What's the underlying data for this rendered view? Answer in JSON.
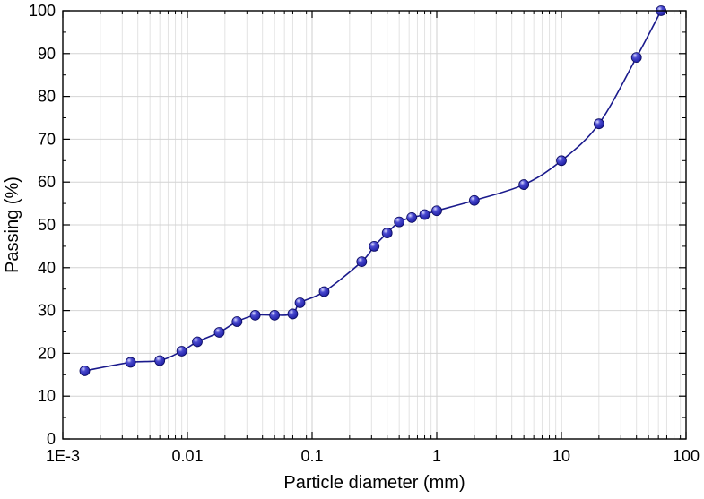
{
  "chart_data": {
    "type": "line",
    "title": "",
    "xlabel": "Particle diameter (mm)",
    "ylabel": "Passing (%)",
    "x_scale": "log",
    "xlim": [
      0.001,
      100
    ],
    "ylim": [
      0,
      100
    ],
    "grid": true,
    "x_ticks": [
      0.001,
      0.01,
      0.1,
      1,
      10,
      100
    ],
    "x_tick_labels": [
      "1E-3",
      "0.01",
      "0.1",
      "1",
      "10",
      "100"
    ],
    "y_ticks": [
      0,
      10,
      20,
      30,
      40,
      50,
      60,
      70,
      80,
      90,
      100
    ],
    "y_tick_labels": [
      "0",
      "10",
      "20",
      "30",
      "40",
      "50",
      "60",
      "70",
      "80",
      "90",
      "100"
    ],
    "line_color": "#1a1a8c",
    "marker_color": "#1c1ca0",
    "series": [
      {
        "marker": "sphere",
        "x": [
          0.0015,
          0.0035,
          0.006,
          0.009,
          0.012,
          0.018,
          0.025,
          0.035,
          0.05,
          0.07,
          0.08,
          0.125,
          0.25,
          0.315,
          0.4,
          0.5,
          0.63,
          0.8,
          1,
          2,
          5,
          10,
          20,
          40,
          63
        ],
        "y": [
          15.9,
          17.9,
          18.3,
          20.5,
          22.7,
          24.9,
          27.4,
          28.9,
          28.9,
          29.2,
          31.8,
          34.4,
          41.4,
          45.0,
          48.1,
          50.7,
          51.7,
          52.4,
          53.3,
          55.7,
          59.4,
          65.0,
          73.6,
          89.1,
          100.0
        ]
      }
    ]
  }
}
